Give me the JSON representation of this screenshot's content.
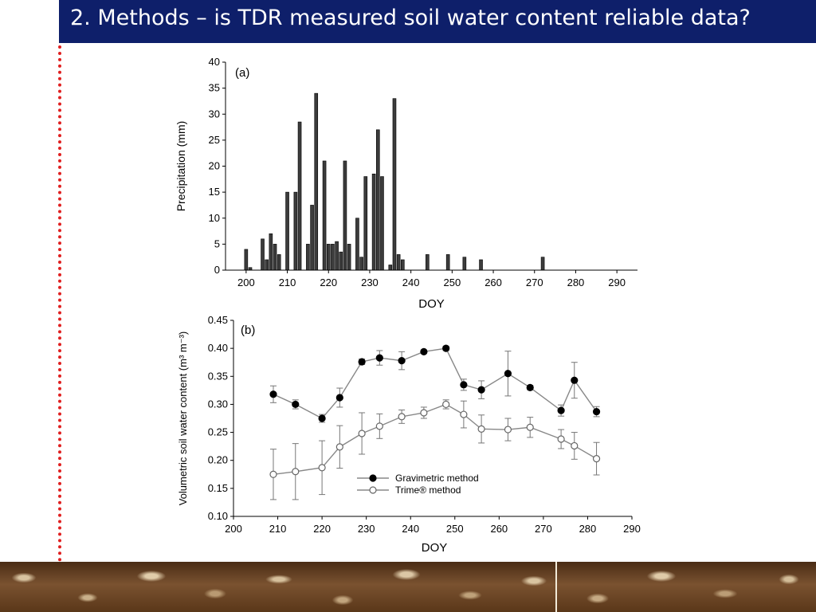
{
  "slide": {
    "title": "2. Methods – is TDR measured soil water content reliable data?"
  },
  "colors": {
    "title_bar": "#0e1f6a",
    "dotted_rule": "#e02020",
    "bar_fill": "#3c3c3c"
  },
  "chart_data": [
    {
      "type": "bar",
      "panel_label": "(a)",
      "xlabel": "DOY",
      "ylabel": "Precipitation (mm)",
      "xlim": [
        195,
        295
      ],
      "ylim": [
        0,
        40
      ],
      "xticks": [
        200,
        210,
        220,
        230,
        240,
        250,
        260,
        270,
        280,
        290
      ],
      "yticks": [
        0,
        5,
        10,
        15,
        20,
        25,
        30,
        35,
        40
      ],
      "x": [
        200,
        201,
        204,
        205,
        206,
        207,
        208,
        210,
        212,
        213,
        215,
        216,
        217,
        219,
        220,
        221,
        222,
        223,
        224,
        225,
        227,
        228,
        229,
        231,
        232,
        233,
        235,
        236,
        237,
        238,
        244,
        249,
        253,
        257,
        272
      ],
      "values": [
        4,
        0.5,
        6,
        2,
        7,
        5,
        3,
        15,
        15,
        28.5,
        5,
        12.5,
        34,
        21,
        5,
        5,
        5.5,
        3.5,
        21,
        5,
        10,
        2.5,
        18,
        18.5,
        27,
        18,
        1,
        33,
        3,
        2,
        3,
        3,
        2.5,
        2,
        2.5
      ]
    },
    {
      "type": "line",
      "panel_label": "(b)",
      "xlabel": "DOY",
      "ylabel": "Volumetric soil water content (m³ m⁻³)",
      "xlim": [
        200,
        290
      ],
      "ylim": [
        0.1,
        0.45
      ],
      "xticks": [
        200,
        210,
        220,
        230,
        240,
        250,
        260,
        270,
        280,
        290
      ],
      "yticks": [
        "0.10",
        "0.15",
        "0.20",
        "0.25",
        "0.30",
        "0.35",
        "0.40",
        "0.45"
      ],
      "legend_position": "lower-left",
      "series": [
        {
          "name": "Gravimetric method",
          "marker": "filled-circle",
          "x": [
            209,
            214,
            220,
            224,
            229,
            233,
            238,
            243,
            248,
            252,
            256,
            262,
            267,
            274,
            277,
            282
          ],
          "y": [
            0.318,
            0.3,
            0.275,
            0.312,
            0.376,
            0.383,
            0.378,
            0.394,
            0.4,
            0.335,
            0.326,
            0.355,
            0.33,
            0.289,
            0.343,
            0.287
          ],
          "err": [
            0.015,
            0.008,
            0.007,
            0.017,
            0.005,
            0.013,
            0.016,
            0.003,
            0.004,
            0.01,
            0.016,
            0.04,
            0.004,
            0.01,
            0.032,
            0.009
          ]
        },
        {
          "name": "Trime® method",
          "marker": "open-circle",
          "x": [
            209,
            214,
            220,
            224,
            229,
            233,
            238,
            243,
            248,
            252,
            256,
            262,
            267,
            274,
            277,
            282
          ],
          "y": [
            0.175,
            0.18,
            0.187,
            0.224,
            0.248,
            0.261,
            0.278,
            0.285,
            0.3,
            0.282,
            0.256,
            0.255,
            0.259,
            0.238,
            0.226,
            0.203
          ],
          "err": [
            0.045,
            0.05,
            0.048,
            0.038,
            0.037,
            0.022,
            0.012,
            0.01,
            0.008,
            0.024,
            0.025,
            0.02,
            0.018,
            0.017,
            0.024,
            0.029
          ]
        }
      ]
    }
  ]
}
